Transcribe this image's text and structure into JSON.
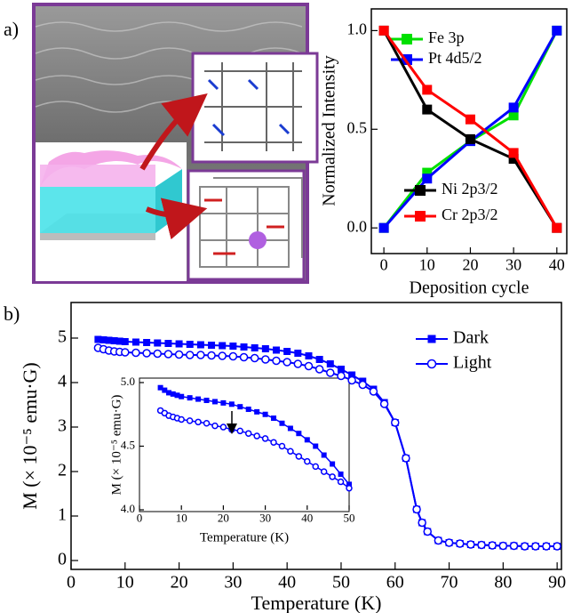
{
  "chart_data": [
    {
      "type": "line",
      "panel_label": "a)",
      "x_label": "Deposition cycle",
      "y_label": "Normalized Intensity",
      "xlim": [
        -2.9,
        42.3
      ],
      "ylim": [
        -0.13,
        1.11
      ],
      "xticks": [
        0,
        10,
        20,
        30,
        40
      ],
      "yticks": [
        {
          "value": 0,
          "label": "0.0"
        },
        {
          "value": 0.5,
          "label": "0.5"
        },
        {
          "value": 1,
          "label": "1.0"
        }
      ],
      "series": [
        {
          "name": "Fe 3p",
          "color": "#00e000",
          "marker": "square",
          "x": [
            0,
            10,
            20,
            30,
            40
          ],
          "values": [
            0,
            0.28,
            0.44,
            0.57,
            1.0
          ]
        },
        {
          "name": "Pt 4d5/2",
          "color": "#0000ff",
          "marker": "square",
          "x": [
            0,
            10,
            20,
            30,
            40
          ],
          "values": [
            0,
            0.25,
            0.44,
            0.61,
            1.0
          ]
        },
        {
          "name": "Ni 2p3/2",
          "color": "#000000",
          "marker": "square",
          "x": [
            0,
            10,
            20,
            30,
            40
          ],
          "values": [
            1.0,
            0.6,
            0.45,
            0.35,
            0
          ]
        },
        {
          "name": "Cr 2p3/2",
          "color": "#ff0000",
          "marker": "square",
          "x": [
            0,
            10,
            20,
            30,
            40
          ],
          "values": [
            1.0,
            0.7,
            0.55,
            0.38,
            0
          ]
        }
      ]
    },
    {
      "type": "line",
      "panel_label": "b)",
      "x_label": "Temperature (K)",
      "y_label": "M (× 10⁻⁵ emu·G)",
      "xlim": [
        0,
        90.8
      ],
      "ylim": [
        -0.2,
        5.8
      ],
      "xticks": [
        0,
        10,
        20,
        30,
        40,
        50,
        60,
        70,
        80,
        90
      ],
      "yticks": [
        0,
        1,
        2,
        3,
        4,
        5
      ],
      "series": [
        {
          "name": "Dark",
          "color": "#0000ff",
          "marker": "square",
          "x": [
            5,
            6,
            7,
            8,
            9,
            10,
            12,
            14,
            16,
            18,
            20,
            22,
            24,
            26,
            28,
            30,
            32,
            34,
            36,
            38,
            40,
            42,
            44,
            46,
            48,
            50,
            52,
            54,
            56,
            58,
            60,
            62,
            64,
            65,
            66,
            68,
            70,
            72,
            74,
            76,
            78,
            80,
            82,
            84,
            86,
            88,
            90
          ],
          "values": [
            4.97,
            4.96,
            4.95,
            4.94,
            4.93,
            4.92,
            4.91,
            4.9,
            4.89,
            4.88,
            4.87,
            4.86,
            4.85,
            4.84,
            4.83,
            4.82,
            4.8,
            4.78,
            4.76,
            4.73,
            4.7,
            4.66,
            4.6,
            4.52,
            4.42,
            4.3,
            4.17,
            4.03,
            3.85,
            3.55,
            3.1,
            2.3,
            1.15,
            0.85,
            0.65,
            0.45,
            0.4,
            0.38,
            0.36,
            0.35,
            0.34,
            0.33,
            0.33,
            0.32,
            0.32,
            0.32,
            0.32
          ]
        },
        {
          "name": "Light",
          "color": "#0000ff",
          "marker": "circle-open",
          "x": [
            5,
            6,
            7,
            8,
            9,
            10,
            12,
            14,
            16,
            18,
            20,
            22,
            24,
            26,
            28,
            30,
            32,
            34,
            36,
            38,
            40,
            42,
            44,
            46,
            48,
            50,
            52,
            54,
            56,
            58,
            60,
            62,
            64,
            65,
            66,
            68,
            70,
            72,
            74,
            76,
            78,
            80,
            82,
            84,
            86,
            88,
            90
          ],
          "values": [
            4.78,
            4.75,
            4.72,
            4.7,
            4.69,
            4.68,
            4.67,
            4.66,
            4.65,
            4.64,
            4.63,
            4.62,
            4.62,
            4.61,
            4.6,
            4.59,
            4.57,
            4.55,
            4.52,
            4.49,
            4.46,
            4.42,
            4.37,
            4.3,
            4.22,
            4.15,
            4.05,
            3.95,
            3.8,
            3.52,
            3.1,
            2.3,
            1.15,
            0.85,
            0.65,
            0.45,
            0.4,
            0.38,
            0.36,
            0.35,
            0.34,
            0.33,
            0.33,
            0.32,
            0.32,
            0.32,
            0.32
          ]
        }
      ]
    },
    {
      "type": "line",
      "x_label": "Temperature (K)",
      "y_label": "M (× 10⁻⁵ emu·G)",
      "xlim": [
        0,
        50
      ],
      "ylim": [
        4.0,
        5.0
      ],
      "xticks": [
        0,
        10,
        20,
        30,
        40,
        50
      ],
      "yticks": [
        {
          "value": 4.0,
          "label": "4.0"
        },
        {
          "value": 4.5,
          "label": "4.5"
        },
        {
          "value": 5.0,
          "label": "5.0"
        }
      ],
      "series": [
        {
          "name": "Dark",
          "color": "#0000ff",
          "marker": "square",
          "x": [
            5,
            6,
            7,
            8,
            9,
            10,
            12,
            14,
            16,
            18,
            20,
            22,
            24,
            26,
            28,
            30,
            32,
            34,
            36,
            38,
            40,
            42,
            44,
            46,
            48,
            50
          ],
          "values": [
            4.96,
            4.94,
            4.92,
            4.91,
            4.9,
            4.89,
            4.88,
            4.87,
            4.86,
            4.85,
            4.84,
            4.83,
            4.81,
            4.79,
            4.77,
            4.75,
            4.72,
            4.68,
            4.64,
            4.6,
            4.55,
            4.5,
            4.43,
            4.36,
            4.28,
            4.2
          ]
        },
        {
          "name": "Light",
          "color": "#0000ff",
          "marker": "circle-open",
          "x": [
            5,
            6,
            7,
            8,
            9,
            10,
            12,
            14,
            16,
            18,
            20,
            22,
            24,
            26,
            28,
            30,
            32,
            34,
            36,
            38,
            40,
            42,
            44,
            46,
            48,
            50
          ],
          "values": [
            4.78,
            4.76,
            4.74,
            4.73,
            4.72,
            4.71,
            4.7,
            4.69,
            4.68,
            4.66,
            4.65,
            4.63,
            4.62,
            4.6,
            4.58,
            4.56,
            4.53,
            4.5,
            4.46,
            4.42,
            4.38,
            4.34,
            4.3,
            4.26,
            4.22,
            4.17
          ]
        }
      ]
    }
  ]
}
